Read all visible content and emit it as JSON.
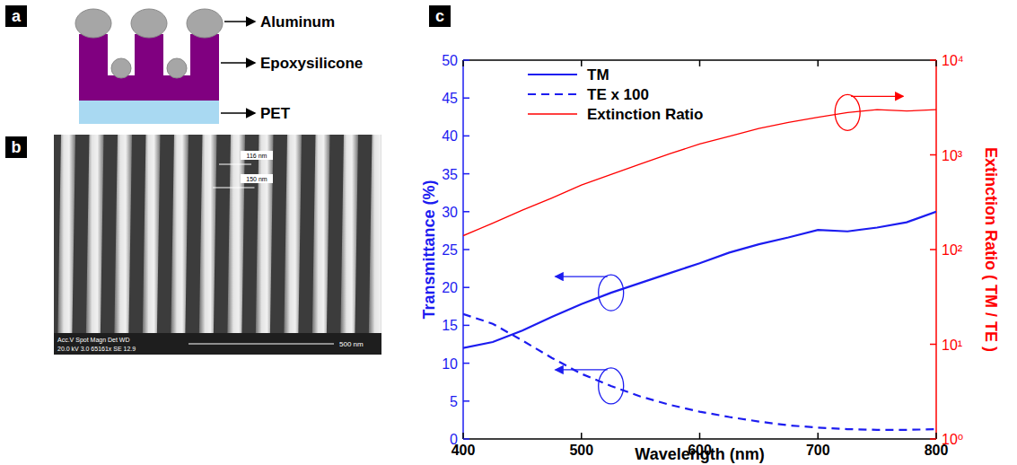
{
  "panel_labels": [
    "a",
    "b",
    "c"
  ],
  "diagram": {
    "labels": [
      "Aluminum",
      "Epoxysilicone",
      "PET"
    ]
  },
  "image": {
    "measurements": [
      "116 nm",
      "150 nm"
    ],
    "scale_bar": "500 nm",
    "info_header": "Acc.V  Spot Magn   Det  WD",
    "info_values": "20.0 kV 3.0 65161x SE 12.9"
  },
  "chart_data": {
    "type": "line",
    "x_label": "Wavelength (nm)",
    "y_label": "Transmittance (%)",
    "y2_label": "Extinction Ratio ( TM / TE )",
    "x": [
      400,
      425,
      450,
      475,
      500,
      525,
      550,
      575,
      600,
      625,
      650,
      675,
      700,
      725,
      750,
      775,
      800
    ],
    "xlim": [
      400,
      800
    ],
    "xticks": [
      400,
      500,
      600,
      700,
      800
    ],
    "ylim": [
      0,
      50
    ],
    "yticks": [
      0,
      5,
      10,
      15,
      20,
      25,
      30,
      35,
      40,
      45,
      50
    ],
    "y2lim": [
      1,
      10000
    ],
    "y2ticks": [
      {
        "value": 1,
        "label": "10⁰"
      },
      {
        "value": 10,
        "label": "10¹"
      },
      {
        "value": 100,
        "label": "10²"
      },
      {
        "value": 1000,
        "label": "10³"
      },
      {
        "value": 10000,
        "label": "10⁴"
      }
    ],
    "log": "y2",
    "grid": false,
    "legend": "upper left",
    "series": [
      {
        "name": "TM",
        "color": "#1c1cf0",
        "line_style": "solid",
        "values": [
          12,
          12.8,
          14.3,
          16.1,
          17.8,
          19.3,
          20.6,
          21.9,
          23.2,
          24.6,
          25.7,
          26.6,
          27.6,
          27.4,
          27.9,
          28.6,
          30
        ]
      },
      {
        "name": "TE x 100",
        "color": "#1c1cf0",
        "line_style": "dashed",
        "values": [
          16.5,
          15.2,
          13.0,
          10.7,
          8.6,
          7.0,
          5.6,
          4.5,
          3.6,
          2.9,
          2.3,
          1.8,
          1.5,
          1.3,
          1.2,
          1.2,
          1.3
        ]
      },
      {
        "name": "Extinction Ratio",
        "color": "#ff0000",
        "line_style": "solid",
        "axis": "y2",
        "values": [
          140,
          190,
          260,
          350,
          480,
          620,
          800,
          1030,
          1300,
          1570,
          1900,
          2200,
          2500,
          2800,
          3000,
          2900,
          3000
        ]
      }
    ]
  }
}
